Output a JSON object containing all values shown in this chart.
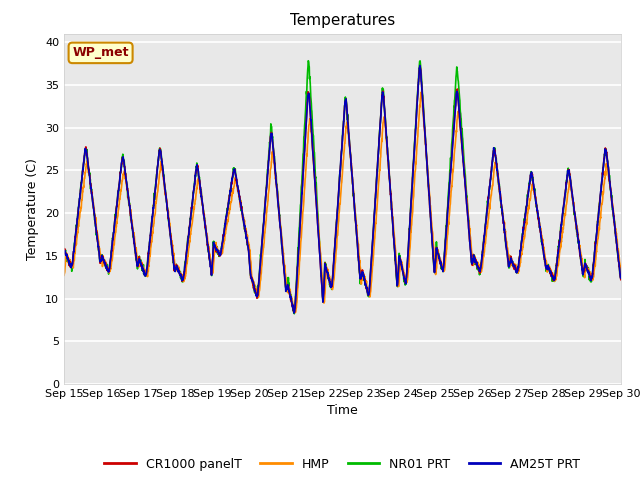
{
  "title": "Temperatures",
  "xlabel": "Time",
  "ylabel": "Temperature (C)",
  "ylim": [
    0,
    41
  ],
  "yticks": [
    0,
    5,
    10,
    15,
    20,
    25,
    30,
    35,
    40
  ],
  "x_labels": [
    "Sep 15",
    "Sep 16",
    "Sep 17",
    "Sep 18",
    "Sep 19",
    "Sep 20",
    "Sep 21",
    "Sep 22",
    "Sep 23",
    "Sep 24",
    "Sep 25",
    "Sep 26",
    "Sep 27",
    "Sep 28",
    "Sep 29",
    "Sep 30"
  ],
  "annotation_text": "WP_met",
  "series_colors": {
    "CR1000 panelT": "#cc0000",
    "HMP": "#ff8c00",
    "NR01 PRT": "#00bb00",
    "AM25T PRT": "#0000bb"
  },
  "series_order": [
    "NR01 PRT",
    "HMP",
    "CR1000 panelT",
    "AM25T PRT"
  ],
  "plot_bg_color": "#e8e8e8",
  "title_fontsize": 11,
  "axis_fontsize": 9,
  "tick_fontsize": 8,
  "legend_fontsize": 9,
  "line_width": 1.2,
  "day_maxima": [
    28,
    27,
    28,
    26,
    25.5,
    30,
    35,
    34,
    35,
    38,
    35,
    28,
    25,
    25.5,
    28
  ],
  "day_minima": [
    13.5,
    13,
    12.5,
    12,
    15,
    10,
    8,
    11,
    10,
    11.5,
    13,
    13,
    13,
    12,
    12
  ],
  "nr01_extra_max": [
    0,
    0,
    0,
    0,
    0,
    0.5,
    3.5,
    0,
    0,
    0.5,
    2.5,
    0,
    0,
    0,
    0
  ],
  "hmp_lag": 0.04,
  "hmp_max_scale": 0.88
}
